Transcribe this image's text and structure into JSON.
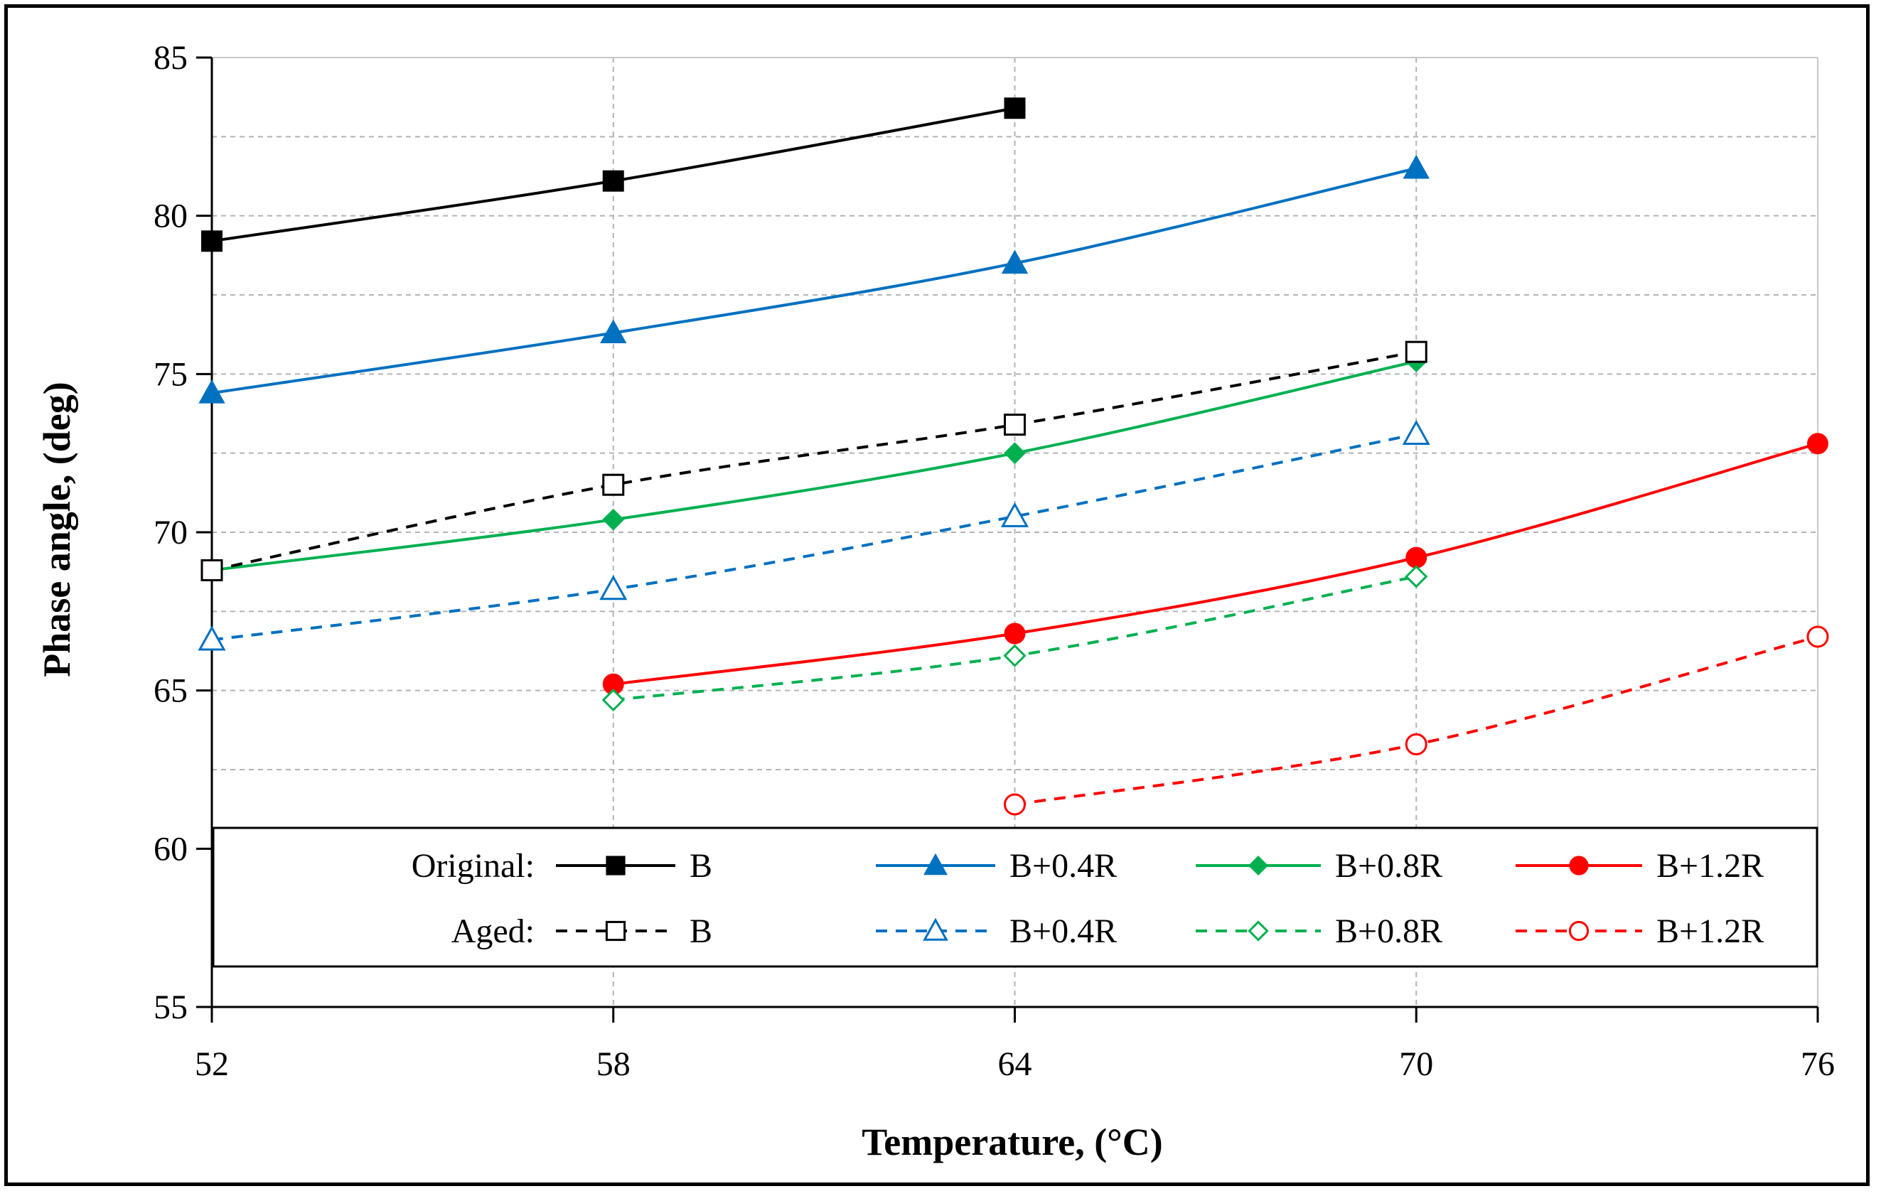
{
  "chart_data": {
    "type": "line",
    "title": "",
    "xlabel": "Temperature, (°C)",
    "ylabel": "Phase angle, (deg)",
    "xlim": [
      52,
      76
    ],
    "ylim": [
      55,
      85
    ],
    "xticks": [
      52,
      58,
      64,
      70,
      76
    ],
    "yticks": [
      55,
      60,
      65,
      70,
      75,
      80,
      85
    ],
    "grid": "dashed",
    "legend": {
      "placement": "bottom-inside",
      "group_labels": [
        "Original:",
        "Aged:"
      ]
    },
    "series": [
      {
        "name": "B",
        "group": "Original",
        "color": "#000000",
        "marker": "square",
        "filled": true,
        "dashed": false,
        "x": [
          52,
          58,
          64
        ],
        "y": [
          79.2,
          81.1,
          83.4
        ]
      },
      {
        "name": "B+0.4R",
        "group": "Original",
        "color": "#0070C0",
        "marker": "triangle",
        "filled": true,
        "dashed": false,
        "x": [
          52,
          58,
          64,
          70
        ],
        "y": [
          74.4,
          76.3,
          78.5,
          81.5
        ]
      },
      {
        "name": "B+0.8R",
        "group": "Original",
        "color": "#00B050",
        "marker": "diamond",
        "filled": true,
        "dashed": false,
        "x": [
          52,
          58,
          64,
          70
        ],
        "y": [
          68.8,
          70.4,
          72.5,
          75.4
        ]
      },
      {
        "name": "B+1.2R",
        "group": "Original",
        "color": "#FF0000",
        "marker": "circle",
        "filled": true,
        "dashed": false,
        "x": [
          58,
          64,
          70,
          76
        ],
        "y": [
          65.2,
          66.8,
          69.2,
          72.8
        ]
      },
      {
        "name": "B",
        "group": "Aged",
        "color": "#000000",
        "marker": "square",
        "filled": false,
        "dashed": true,
        "x": [
          52,
          58,
          64,
          70
        ],
        "y": [
          68.8,
          71.5,
          73.4,
          75.7
        ]
      },
      {
        "name": "B+0.4R",
        "group": "Aged",
        "color": "#0070C0",
        "marker": "triangle",
        "filled": false,
        "dashed": true,
        "x": [
          52,
          58,
          64,
          70
        ],
        "y": [
          66.6,
          68.2,
          70.5,
          73.1
        ]
      },
      {
        "name": "B+0.8R",
        "group": "Aged",
        "color": "#00B050",
        "marker": "diamond",
        "filled": false,
        "dashed": true,
        "x": [
          58,
          64,
          70
        ],
        "y": [
          64.7,
          66.1,
          68.6
        ]
      },
      {
        "name": "B+1.2R",
        "group": "Aged",
        "color": "#FF0000",
        "marker": "circle",
        "filled": false,
        "dashed": true,
        "x": [
          64,
          70,
          76
        ],
        "y": [
          61.4,
          63.3,
          66.7
        ]
      }
    ]
  }
}
